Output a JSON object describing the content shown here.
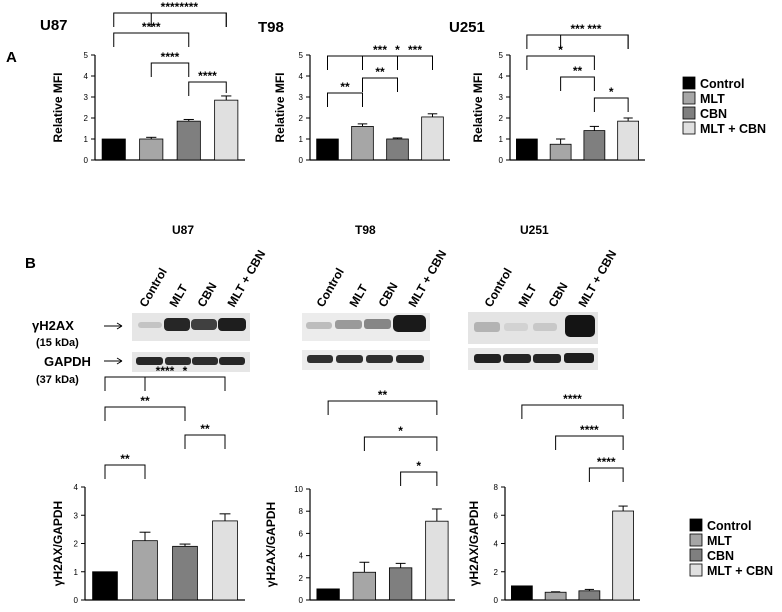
{
  "panels": {
    "a": "A",
    "b": "B"
  },
  "legend_entries": [
    {
      "label": "Control",
      "color": "#000000"
    },
    {
      "label": "MLT",
      "color": "#a6a6a6"
    },
    {
      "label": "CBN",
      "color": "#7f7f7f"
    },
    {
      "label": "MLT + CBN",
      "color": "#e0e0e0"
    }
  ],
  "blot": {
    "groups": [
      "U87",
      "T98",
      "U251"
    ],
    "lanes": [
      "Control",
      "MLT",
      "CBN",
      "MLT + CBN"
    ],
    "proteins": [
      {
        "name": "γH2AX",
        "size": "(15 kDa)"
      },
      {
        "name": "GAPDH",
        "size": "(37 kDa)"
      }
    ]
  },
  "chart_data": [
    {
      "type": "bar",
      "title": "U87",
      "categories": [
        "Control",
        "MLT",
        "CBN",
        "MLT + CBN"
      ],
      "values": [
        1.0,
        1.0,
        1.85,
        2.85
      ],
      "errors": [
        0.0,
        0.08,
        0.08,
        0.2
      ],
      "ylabel": "Relative MFI",
      "ylim": [
        0,
        5
      ],
      "yticks": [
        0,
        1,
        2,
        3,
        4,
        5
      ],
      "colors": [
        "#000000",
        "#a6a6a6",
        "#7f7f7f",
        "#e0e0e0"
      ],
      "comparisons": [
        {
          "from": 2,
          "to": 3,
          "label": "****"
        },
        {
          "from": 1,
          "to": 2,
          "label": "****"
        },
        {
          "from": 0,
          "to": 2,
          "label": "****"
        },
        {
          "from": 1,
          "to": 3,
          "label": "****"
        },
        {
          "from": 0,
          "to": 3,
          "label": "****"
        }
      ]
    },
    {
      "type": "bar",
      "title": "T98",
      "categories": [
        "Control",
        "MLT",
        "CBN",
        "MLT + CBN"
      ],
      "values": [
        1.0,
        1.6,
        1.0,
        2.05
      ],
      "errors": [
        0.0,
        0.12,
        0.05,
        0.15
      ],
      "ylabel": "Relative MFI",
      "ylim": [
        0,
        5
      ],
      "yticks": [
        0,
        1,
        2,
        3,
        4,
        5
      ],
      "colors": [
        "#000000",
        "#a6a6a6",
        "#7f7f7f",
        "#e0e0e0"
      ],
      "comparisons": [
        {
          "from": 0,
          "to": 1,
          "label": "**"
        },
        {
          "from": 1,
          "to": 2,
          "label": "**"
        },
        {
          "from": 2,
          "to": 3,
          "label": "***"
        },
        {
          "from": 1,
          "to": 3,
          "label": "*"
        },
        {
          "from": 0,
          "to": 3,
          "label": "***"
        }
      ]
    },
    {
      "type": "bar",
      "title": "U251",
      "categories": [
        "Control",
        "MLT",
        "CBN",
        "MLT + CBN"
      ],
      "values": [
        1.0,
        0.75,
        1.4,
        1.85
      ],
      "errors": [
        0.0,
        0.25,
        0.2,
        0.15
      ],
      "ylabel": "Relative MFI",
      "ylim": [
        0,
        5
      ],
      "yticks": [
        0,
        1,
        2,
        3,
        4,
        5
      ],
      "colors": [
        "#000000",
        "#a6a6a6",
        "#7f7f7f",
        "#e0e0e0"
      ],
      "comparisons": [
        {
          "from": 2,
          "to": 3,
          "label": "*"
        },
        {
          "from": 1,
          "to": 2,
          "label": "**"
        },
        {
          "from": 0,
          "to": 2,
          "label": "*"
        },
        {
          "from": 1,
          "to": 3,
          "label": "***"
        },
        {
          "from": 0,
          "to": 3,
          "label": "***"
        }
      ]
    },
    {
      "type": "bar",
      "title": "",
      "categories": [
        "Control",
        "MLT",
        "CBN",
        "MLT + CBN"
      ],
      "values": [
        1.0,
        2.1,
        1.9,
        2.8
      ],
      "errors": [
        0.0,
        0.3,
        0.08,
        0.25
      ],
      "ylabel": "γH2AX/GAPDH",
      "ylim": [
        0,
        4
      ],
      "yticks": [
        0,
        1,
        2,
        3,
        4
      ],
      "colors": [
        "#000000",
        "#a6a6a6",
        "#7f7f7f",
        "#e0e0e0"
      ],
      "comparisons": [
        {
          "from": 0,
          "to": 1,
          "label": "**"
        },
        {
          "from": 2,
          "to": 3,
          "label": "**"
        },
        {
          "from": 0,
          "to": 2,
          "label": "**"
        },
        {
          "from": 1,
          "to": 3,
          "label": "*"
        },
        {
          "from": 0,
          "to": 3,
          "label": "****"
        }
      ]
    },
    {
      "type": "bar",
      "title": "",
      "categories": [
        "Control",
        "MLT",
        "CBN",
        "MLT + CBN"
      ],
      "values": [
        1.0,
        2.5,
        2.9,
        7.1
      ],
      "errors": [
        0.0,
        0.9,
        0.4,
        1.1
      ],
      "ylabel": "γH2AX/GAPDH",
      "ylim": [
        0,
        10
      ],
      "yticks": [
        0,
        2,
        4,
        6,
        8,
        10
      ],
      "colors": [
        "#000000",
        "#a6a6a6",
        "#7f7f7f",
        "#e0e0e0"
      ],
      "comparisons": [
        {
          "from": 2,
          "to": 3,
          "label": "*"
        },
        {
          "from": 1,
          "to": 3,
          "label": "*"
        },
        {
          "from": 0,
          "to": 3,
          "label": "**"
        }
      ]
    },
    {
      "type": "bar",
      "title": "",
      "categories": [
        "Control",
        "MLT",
        "CBN",
        "MLT + CBN"
      ],
      "values": [
        1.0,
        0.55,
        0.65,
        6.3
      ],
      "errors": [
        0.0,
        0.03,
        0.1,
        0.35
      ],
      "ylabel": "γH2AX/GAPDH",
      "ylim": [
        0,
        8
      ],
      "yticks": [
        0,
        2,
        4,
        6,
        8
      ],
      "colors": [
        "#000000",
        "#a6a6a6",
        "#7f7f7f",
        "#e0e0e0"
      ],
      "comparisons": [
        {
          "from": 2,
          "to": 3,
          "label": "****"
        },
        {
          "from": 1,
          "to": 3,
          "label": "****"
        },
        {
          "from": 0,
          "to": 3,
          "label": "****"
        }
      ]
    }
  ]
}
